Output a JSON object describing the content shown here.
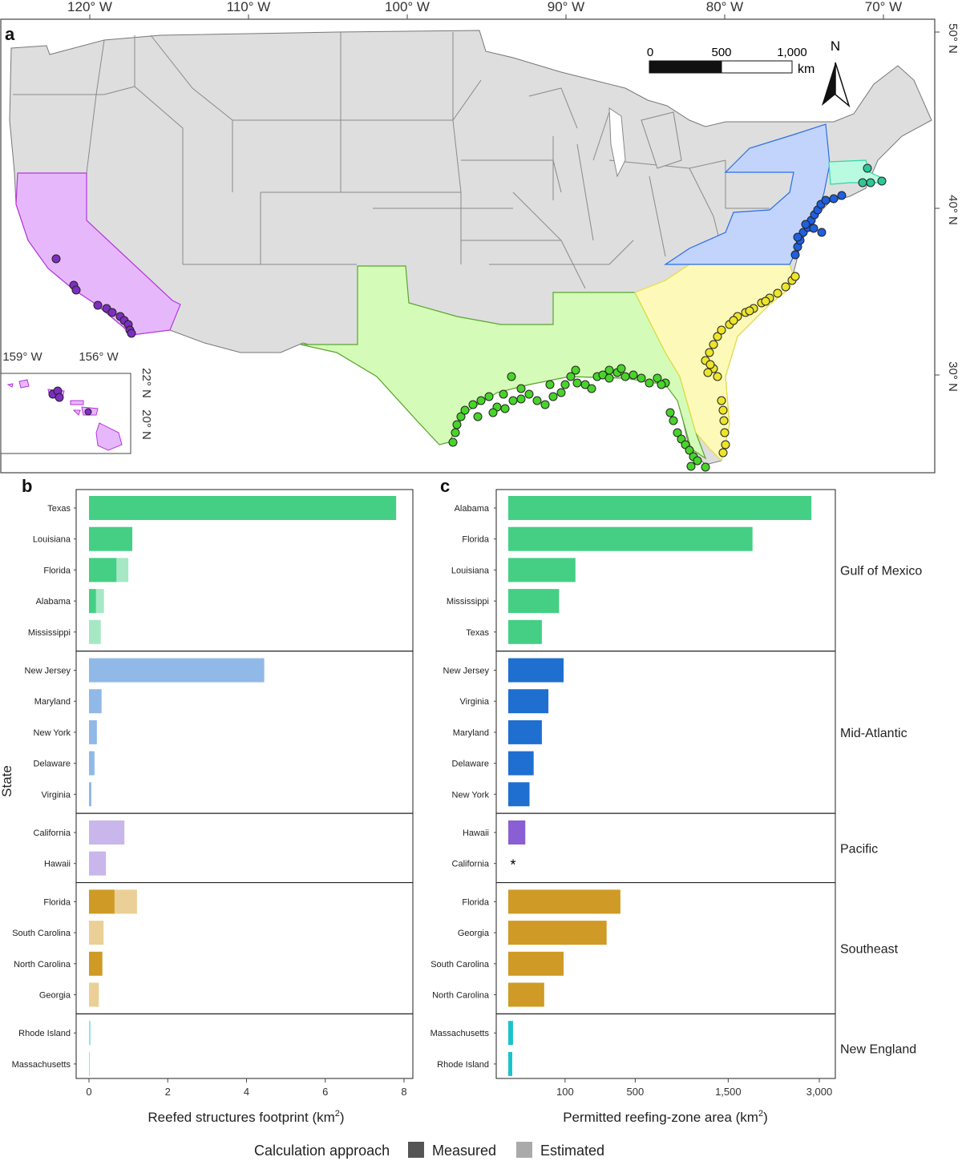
{
  "panel_a": {
    "letter": "a",
    "lon_labels": [
      "120° W",
      "110° W",
      "100° W",
      "90° W",
      "80° W",
      "70° W"
    ],
    "lat_labels": [
      "50° N",
      "40° N",
      "30° N"
    ],
    "inset_lon_labels": [
      "159° W",
      "156° W"
    ],
    "inset_lat_labels": [
      "22° N",
      "20° N"
    ],
    "scale_bar": {
      "labels": [
        "0",
        "500",
        "1,000"
      ],
      "unit": "km"
    },
    "north_label": "N",
    "region_colors": {
      "Gulf of Mexico": "#d4fcb8",
      "Mid-Atlantic": "#c2d4fb",
      "Pacific": "#e6b8fb",
      "Southeast": "#fdf9b8",
      "New England": "#b9fbe0",
      "other": "#dedede"
    },
    "point_colors": {
      "Gulf of Mexico": "#48d42a",
      "Mid-Atlantic": "#1f5fe0",
      "Pacific": "#7d2ec0",
      "Southeast": "#ece52a",
      "New England": "#2fc79a"
    }
  },
  "chart_data": [
    {
      "type": "bar",
      "panel": "b",
      "orientation": "horizontal",
      "xlabel": "Reefed structures footprint (km",
      "xlabel_sup": "2",
      "xlabel_close": ")",
      "ylabel": "State",
      "xlim": [
        0,
        8
      ],
      "xticks": [
        "0",
        "2",
        "4",
        "6",
        "8"
      ],
      "groups": [
        {
          "region": "Gulf of Mexico",
          "color_measured": "#44cf85",
          "color_estimated": "#a6e8c4",
          "states": [
            {
              "state": "Texas",
              "measured": 7.8,
              "estimated": 0
            },
            {
              "state": "Louisiana",
              "measured": 1.1,
              "estimated": 0
            },
            {
              "state": "Florida",
              "measured": 0.7,
              "estimated": 0.3
            },
            {
              "state": "Alabama",
              "measured": 0.18,
              "estimated": 0.2
            },
            {
              "state": "Mississippi",
              "measured": 0,
              "estimated": 0.3
            }
          ]
        },
        {
          "region": "Mid-Atlantic",
          "color_measured": "#1e6fcf",
          "color_estimated": "#90b9e8",
          "states": [
            {
              "state": "New Jersey",
              "measured": 0,
              "estimated": 4.45
            },
            {
              "state": "Maryland",
              "measured": 0,
              "estimated": 0.32
            },
            {
              "state": "New York",
              "measured": 0,
              "estimated": 0.2
            },
            {
              "state": "Delaware",
              "measured": 0,
              "estimated": 0.14
            },
            {
              "state": "Virginia",
              "measured": 0,
              "estimated": 0.06
            }
          ]
        },
        {
          "region": "Pacific",
          "color_measured": "#8a5fd3",
          "color_estimated": "#c9b6ea",
          "states": [
            {
              "state": "California",
              "measured": 0,
              "estimated": 0.9
            },
            {
              "state": "Hawaii",
              "measured": 0,
              "estimated": 0.43
            }
          ]
        },
        {
          "region": "Southeast",
          "color_measured": "#cf9a25",
          "color_estimated": "#ead097",
          "states": [
            {
              "state": "Florida",
              "measured": 0.65,
              "estimated": 0.57
            },
            {
              "state": "South Carolina",
              "measured": 0,
              "estimated": 0.37
            },
            {
              "state": "North Carolina",
              "measured": 0.34,
              "estimated": 0
            },
            {
              "state": "Georgia",
              "measured": 0,
              "estimated": 0.25
            }
          ]
        },
        {
          "region": "New England",
          "color_measured": "#19c3cf",
          "color_estimated": "#93e3e8",
          "states": [
            {
              "state": "Rhode Island",
              "measured": 0,
              "estimated": 0.04
            },
            {
              "state": "Massachusetts",
              "measured": 0,
              "estimated": 0.02
            }
          ]
        }
      ]
    },
    {
      "type": "bar",
      "panel": "c",
      "orientation": "horizontal",
      "scale": "square-root",
      "xlabel": "Permitted reefing-zone area (km",
      "xlabel_sup": "2",
      "xlabel_close": ")",
      "xlim": [
        0,
        3200
      ],
      "xticks": [
        100,
        500,
        1500,
        3000
      ],
      "xtick_labels": [
        "100",
        "500",
        "1,500",
        "3,000"
      ],
      "annotation": "*",
      "groups": [
        {
          "region": "Gulf of Mexico",
          "color": "#44cf85",
          "states": [
            {
              "state": "Alabama",
              "value": 2850
            },
            {
              "state": "Florida",
              "value": 1850
            },
            {
              "state": "Louisiana",
              "value": 140
            },
            {
              "state": "Mississippi",
              "value": 80
            },
            {
              "state": "Texas",
              "value": 35
            }
          ]
        },
        {
          "region": "Mid-Atlantic",
          "color": "#1e6fcf",
          "states": [
            {
              "state": "New Jersey",
              "value": 95
            },
            {
              "state": "Virginia",
              "value": 50
            },
            {
              "state": "Maryland",
              "value": 35
            },
            {
              "state": "Delaware",
              "value": 20
            },
            {
              "state": "New York",
              "value": 14
            }
          ]
        },
        {
          "region": "Pacific",
          "color": "#8a5fd3",
          "states": [
            {
              "state": "Hawaii",
              "value": 9
            },
            {
              "state": "California",
              "value": null
            }
          ]
        },
        {
          "region": "Southeast",
          "color": "#cf9a25",
          "states": [
            {
              "state": "Florida",
              "value": 390
            },
            {
              "state": "Georgia",
              "value": 300
            },
            {
              "state": "South Carolina",
              "value": 95
            },
            {
              "state": "North Carolina",
              "value": 40
            }
          ]
        },
        {
          "region": "New England",
          "color": "#19c3cf",
          "states": [
            {
              "state": "Massachusetts",
              "value": 0.7
            },
            {
              "state": "Rhode Island",
              "value": 0.4
            }
          ]
        }
      ]
    }
  ],
  "legend": {
    "title": "Calculation approach",
    "items": [
      {
        "label": "Measured",
        "color": "#555555"
      },
      {
        "label": "Estimated",
        "color": "#aaaaaa"
      }
    ]
  }
}
